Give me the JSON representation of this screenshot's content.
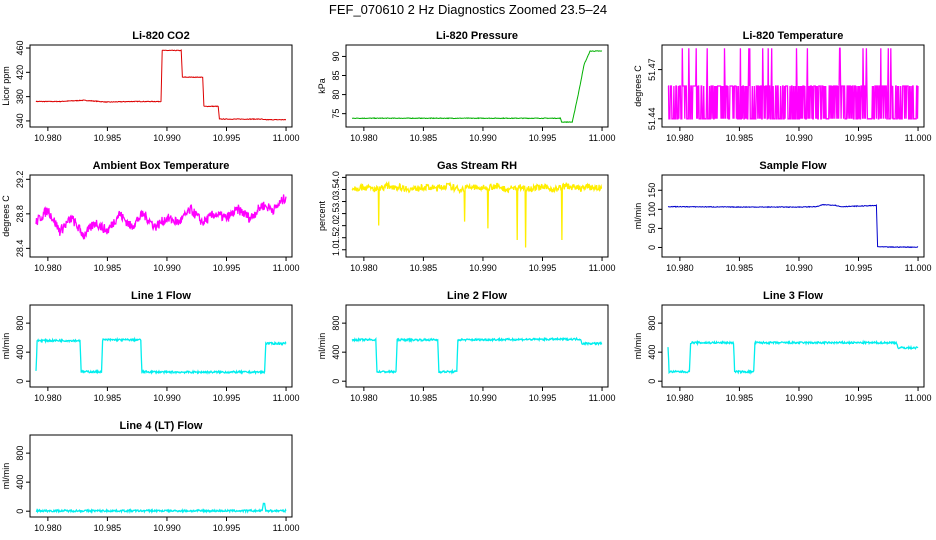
{
  "page_title": "FEF_070610  2 Hz Diagnostics Zoomed 23.5–24",
  "chart_data": [
    {
      "type": "line",
      "title": "Li-820 CO2",
      "ylabel": "Licor ppm",
      "color": "#dd0000",
      "xlim": [
        10.9785,
        11.0005
      ],
      "ylim": [
        330,
        465
      ],
      "x_ticks": [
        10.98,
        10.985,
        10.99,
        10.995,
        11.0
      ],
      "x_tick_labels": [
        "10.980",
        "10.985",
        "10.990",
        "10.995",
        "11.000"
      ],
      "y_ticks": [
        340,
        380,
        420,
        460
      ],
      "y_tick_labels": [
        "340",
        "380",
        "420",
        "460"
      ],
      "series": [
        {
          "x": [
            10.979,
            10.981,
            10.983,
            10.985,
            10.987,
            10.9895,
            10.9896,
            10.9912,
            10.9913,
            10.993,
            10.9931,
            10.9943,
            10.9944,
            10.998,
            10.9981,
            11.0
          ],
          "y": [
            372,
            372,
            374,
            371,
            372,
            372,
            456,
            456,
            412,
            412,
            364,
            364,
            343,
            343,
            342,
            342
          ]
        }
      ]
    },
    {
      "type": "line",
      "title": "Li-820 Pressure",
      "ylabel": "kPa",
      "color": "#00b000",
      "xlim": [
        10.9785,
        11.0005
      ],
      "ylim": [
        71.5,
        93
      ],
      "x_ticks": [
        10.98,
        10.985,
        10.99,
        10.995,
        11.0
      ],
      "x_tick_labels": [
        "10.980",
        "10.985",
        "10.990",
        "10.995",
        "11.000"
      ],
      "y_ticks": [
        75,
        80,
        85,
        90
      ],
      "y_tick_labels": [
        "75",
        "80",
        "85",
        "90"
      ],
      "series": [
        {
          "x": [
            10.979,
            10.9965,
            10.9966,
            10.9975,
            10.998,
            10.9985,
            10.999,
            11.0
          ],
          "y": [
            73.8,
            73.8,
            72.8,
            72.8,
            80,
            88,
            91.4,
            91.4
          ]
        }
      ]
    },
    {
      "type": "line",
      "title": "Li-820 Temperature",
      "ylabel": "degrees C",
      "color": "#ff00ff",
      "xlim": [
        10.9785,
        11.0005
      ],
      "ylim": [
        51.435,
        51.485
      ],
      "x_ticks": [
        10.98,
        10.985,
        10.99,
        10.995,
        11.0
      ],
      "x_tick_labels": [
        "10.980",
        "10.985",
        "10.990",
        "10.995",
        "11.000"
      ],
      "y_ticks": [
        51.44,
        51.47
      ],
      "y_tick_labels": [
        "51.44",
        "51.47"
      ],
      "series": [
        {
          "x": [
            10.979,
            10.98,
            10.981,
            10.982,
            10.983,
            10.984,
            10.985,
            10.986,
            10.987,
            10.988,
            10.989,
            10.99,
            10.991,
            10.992,
            10.993,
            10.994,
            10.995,
            10.996,
            10.997,
            10.998,
            10.999,
            11.0
          ],
          "y": [
            51.46,
            51.44,
            51.46,
            51.483,
            51.46,
            51.44,
            51.483,
            51.46,
            51.44,
            51.46,
            51.483,
            51.46,
            51.44,
            51.483,
            51.46,
            51.44,
            51.46,
            51.483,
            51.46,
            51.44,
            51.483,
            51.46
          ]
        }
      ]
    },
    {
      "type": "line",
      "title": "Ambient Box Temperature",
      "ylabel": "degrees C",
      "color": "#ff00ff",
      "xlim": [
        10.9785,
        11.0005
      ],
      "ylim": [
        28.3,
        29.25
      ],
      "x_ticks": [
        10.98,
        10.985,
        10.99,
        10.995,
        11.0
      ],
      "x_tick_labels": [
        "10.980",
        "10.985",
        "10.990",
        "10.995",
        "11.000"
      ],
      "y_ticks": [
        28.4,
        28.8,
        29.2
      ],
      "y_tick_labels": [
        "28.4",
        "28.8",
        "29.2"
      ],
      "series": [
        {
          "x": [
            10.979,
            10.98,
            10.981,
            10.982,
            10.983,
            10.984,
            10.985,
            10.986,
            10.987,
            10.988,
            10.989,
            10.99,
            10.991,
            10.992,
            10.993,
            10.994,
            10.995,
            10.996,
            10.997,
            10.998,
            10.999,
            11.0
          ],
          "y": [
            28.7,
            28.85,
            28.6,
            28.75,
            28.55,
            28.7,
            28.6,
            28.8,
            28.65,
            28.8,
            28.65,
            28.75,
            28.7,
            28.85,
            28.7,
            28.8,
            28.75,
            28.85,
            28.75,
            28.9,
            28.85,
            29.0
          ]
        }
      ]
    },
    {
      "type": "line",
      "title": "Gas Stream RH",
      "ylabel": "percent",
      "color": "#ffee00",
      "xlim": [
        10.9785,
        11.0005
      ],
      "ylim": [
        0.7,
        4.1
      ],
      "x_ticks": [
        10.98,
        10.985,
        10.99,
        10.995,
        11.0
      ],
      "x_tick_labels": [
        "10.980",
        "10.985",
        "10.990",
        "10.995",
        "11.000"
      ],
      "y_ticks": [
        1.0,
        1.5,
        2.0,
        2.5,
        3.0,
        3.5,
        4.0
      ],
      "y_tick_labels": [
        "1.0",
        "1.5",
        "2.0",
        "2.5",
        "3.0",
        "3.5",
        "4.0"
      ],
      "series": [
        {
          "x": [
            10.979,
            10.98,
            10.981,
            10.982,
            10.983,
            10.984,
            10.985,
            10.986,
            10.987,
            10.988,
            10.989,
            10.99,
            10.991,
            10.992,
            10.993,
            10.994,
            10.995,
            10.996,
            10.997,
            10.998,
            10.999,
            11.0
          ],
          "y": [
            3.55,
            3.6,
            3.5,
            3.65,
            3.6,
            3.5,
            3.6,
            3.55,
            3.65,
            3.5,
            3.6,
            3.55,
            3.65,
            3.5,
            3.6,
            3.55,
            3.6,
            3.5,
            3.65,
            3.55,
            3.6,
            3.55
          ]
        }
      ]
    },
    {
      "type": "line",
      "title": "Sample Flow",
      "ylabel": "ml/min",
      "color": "#0000cc",
      "xlim": [
        10.9785,
        11.0005
      ],
      "ylim": [
        -25,
        190
      ],
      "x_ticks": [
        10.98,
        10.985,
        10.99,
        10.995,
        11.0
      ],
      "x_tick_labels": [
        "10.980",
        "10.985",
        "10.990",
        "10.995",
        "11.000"
      ],
      "y_ticks": [
        0,
        50,
        100,
        150
      ],
      "y_tick_labels": [
        "0",
        "50",
        "100",
        "150"
      ],
      "series": [
        {
          "x": [
            10.979,
            10.985,
            10.99,
            10.9915,
            10.992,
            10.993,
            10.9935,
            10.9965,
            10.9966,
            10.9975,
            11.0
          ],
          "y": [
            107,
            106,
            106,
            107,
            112,
            111,
            107,
            110,
            2,
            1,
            1
          ]
        }
      ]
    },
    {
      "type": "line",
      "title": "Line 1 Flow",
      "ylabel": "ml/min",
      "color": "#00eeee",
      "xlim": [
        10.9785,
        11.0005
      ],
      "ylim": [
        -80,
        1050
      ],
      "x_ticks": [
        10.98,
        10.985,
        10.99,
        10.995,
        11.0
      ],
      "x_tick_labels": [
        "10.980",
        "10.985",
        "10.990",
        "10.995",
        "11.000"
      ],
      "y_ticks": [
        0,
        400,
        800
      ],
      "y_tick_labels": [
        "0",
        "400",
        "800"
      ],
      "series": [
        {
          "x": [
            10.979,
            10.9791,
            10.9827,
            10.9828,
            10.9845,
            10.9846,
            10.9878,
            10.9879,
            10.99,
            10.9982,
            10.9983,
            11.0
          ],
          "y": [
            130,
            560,
            560,
            130,
            130,
            570,
            570,
            130,
            125,
            125,
            520,
            520
          ]
        }
      ]
    },
    {
      "type": "line",
      "title": "Line 2 Flow",
      "ylabel": "ml/min",
      "color": "#00eeee",
      "xlim": [
        10.9785,
        11.0005
      ],
      "ylim": [
        -80,
        1050
      ],
      "x_ticks": [
        10.98,
        10.985,
        10.99,
        10.995,
        11.0
      ],
      "x_tick_labels": [
        "10.980",
        "10.985",
        "10.990",
        "10.995",
        "11.000"
      ],
      "y_ticks": [
        0,
        400,
        800
      ],
      "y_tick_labels": [
        "0",
        "400",
        "800"
      ],
      "series": [
        {
          "x": [
            10.979,
            10.981,
            10.9811,
            10.9827,
            10.9828,
            10.9862,
            10.9863,
            10.9878,
            10.9879,
            10.9982,
            10.9983,
            11.0
          ],
          "y": [
            570,
            570,
            130,
            130,
            570,
            570,
            130,
            130,
            570,
            580,
            520,
            520
          ]
        }
      ]
    },
    {
      "type": "line",
      "title": "Line 3 Flow",
      "ylabel": "ml/min",
      "color": "#00eeee",
      "xlim": [
        10.9785,
        11.0005
      ],
      "ylim": [
        -80,
        1050
      ],
      "x_ticks": [
        10.98,
        10.985,
        10.99,
        10.995,
        11.0
      ],
      "x_tick_labels": [
        "10.980",
        "10.985",
        "10.990",
        "10.995",
        "11.000"
      ],
      "y_ticks": [
        0,
        400,
        800
      ],
      "y_tick_labels": [
        "0",
        "400",
        "800"
      ],
      "series": [
        {
          "x": [
            10.979,
            10.9791,
            10.9808,
            10.9809,
            10.9845,
            10.9846,
            10.9862,
            10.9863,
            10.9982,
            10.9983,
            11.0
          ],
          "y": [
            480,
            130,
            130,
            530,
            530,
            130,
            130,
            530,
            530,
            460,
            460
          ]
        }
      ]
    },
    {
      "type": "line",
      "title": "Line 4 (LT) Flow",
      "ylabel": "ml/min",
      "color": "#00eeee",
      "xlim": [
        10.9785,
        11.0005
      ],
      "ylim": [
        -80,
        1050
      ],
      "x_ticks": [
        10.98,
        10.985,
        10.99,
        10.995,
        11.0
      ],
      "x_tick_labels": [
        "10.980",
        "10.985",
        "10.990",
        "10.995",
        "11.000"
      ],
      "y_ticks": [
        0,
        400,
        800
      ],
      "y_tick_labels": [
        "0",
        "400",
        "800"
      ],
      "series": [
        {
          "x": [
            10.979,
            10.998,
            10.9981,
            10.9982,
            10.9983,
            11.0
          ],
          "y": [
            5,
            5,
            110,
            110,
            5,
            5
          ]
        }
      ]
    }
  ]
}
